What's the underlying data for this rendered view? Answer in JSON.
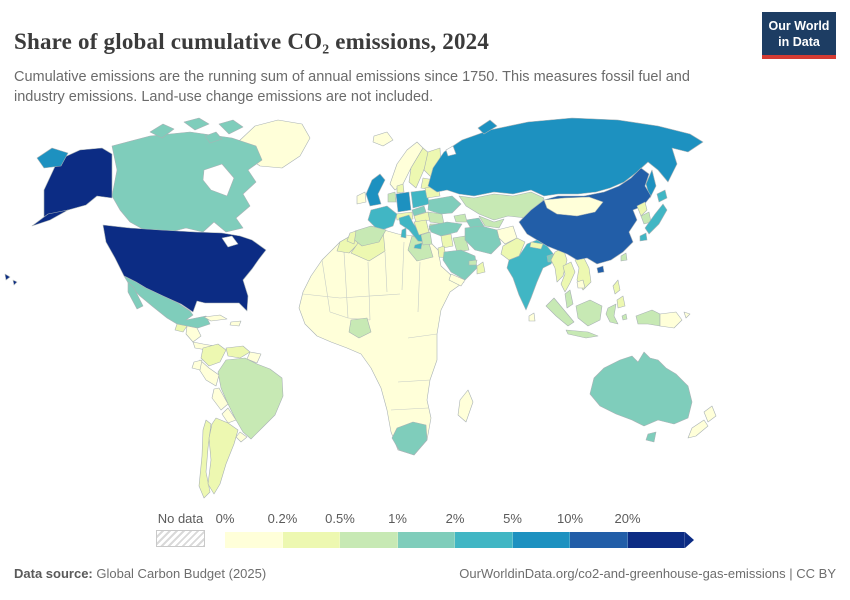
{
  "header": {
    "title": "Share of global cumulative CO₂ emissions, 2024",
    "subtitle": "Cumulative emissions are the running sum of annual emissions since 1750. This measures fossil fuel and industry emissions. Land-use change emissions are not included."
  },
  "logo": {
    "line1": "Our World",
    "line2": "in Data",
    "bg_color": "#1d3d63",
    "accent_color": "#d43b33"
  },
  "legend": {
    "no_data_label": "No data",
    "ticks": [
      "0%",
      "0.2%",
      "0.5%",
      "1%",
      "2%",
      "5%",
      "10%",
      "20%"
    ]
  },
  "footer": {
    "source_label": "Data source:",
    "source_value": " Global Carbon Budget (2025)",
    "credit": "OurWorldinData.org/co2-and-greenhouse-gas-emissions | CC BY"
  },
  "chart_data": {
    "type": "choropleth_map",
    "title": "Share of global cumulative CO₂ emissions, 2024",
    "unit": "% of global cumulative CO₂ emissions",
    "bin_order": [
      "0-0.2%",
      "0.2-0.5%",
      "0.5-1%",
      "1-2%",
      "2-5%",
      "5-10%",
      "10-20%",
      "20%+"
    ],
    "palette": {
      "0-0.2%": "#ffffd9",
      "0.2-0.5%": "#edf8b1",
      "0.5-1%": "#c7e9b4",
      "1-2%": "#7fcdbb",
      "2-5%": "#41b6c4",
      "5-10%": "#1d91c0",
      "10-20%": "#225ea8",
      "20%+": "#0c2c84",
      "No data": "hatched"
    },
    "default_bin": "0-0.2%",
    "countries": {
      "United States": "20%+",
      "China": "10-20%",
      "Russia": "5-10%",
      "Germany": "5-10%",
      "United Kingdom": "5-10%",
      "France": "2-5%",
      "Japan": "2-5%",
      "India": "2-5%",
      "Italy": "2-5%",
      "Poland": "2-5%",
      "Canada": "1-2%",
      "Mexico": "1-2%",
      "Australia": "1-2%",
      "South Africa": "1-2%",
      "Saudi Arabia": "1-2%",
      "Iran": "1-2%",
      "Turkey": "1-2%",
      "Ukraine": "1-2%",
      "Czechia": "1-2%",
      "Turkmenistan": "1-2%",
      "Bangladesh": "1-2%",
      "Spain": "0.5-1%",
      "Kazakhstan": "0.5-1%",
      "Brazil": "0.5-1%",
      "Indonesia": "0.5-1%",
      "Egypt": "0.5-1%",
      "Nigeria": "0.5-1%",
      "South Korea": "0.5-1%",
      "Romania": "0.5-1%",
      "Bulgaria": "0.5-1%",
      "Greece": "0.5-1%",
      "Iraq": "0.5-1%",
      "Uzbekistan": "0.5-1%",
      "Netherlands": "0.5-1%",
      "Malaysia": "0.5-1%",
      "Taiwan": "0.5-1%",
      "Azerbaijan": "0.5-1%",
      "United Arab Emirates": "0.5-1%",
      "Argentina": "0.2-0.5%",
      "Chile": "0.2-0.5%",
      "Colombia": "0.2-0.5%",
      "Venezuela": "0.2-0.5%",
      "Algeria": "0.2-0.5%",
      "Morocco": "0.2-0.5%",
      "Sweden": "0.2-0.5%",
      "Finland": "0.2-0.5%",
      "Denmark": "0.2-0.5%",
      "Belarus": "0.2-0.5%",
      "Lithuania": "0.2-0.5%",
      "Portugal": "0.2-0.5%",
      "Austria": "0.2-0.5%",
      "Hungary": "0.2-0.5%",
      "Serbia": "0.2-0.5%",
      "Syria": "0.2-0.5%",
      "Israel": "0.2-0.5%",
      "Oman": "0.2-0.5%",
      "Pakistan": "0.2-0.5%",
      "Myanmar": "0.2-0.5%",
      "Thailand": "0.2-0.5%",
      "Vietnam": "0.2-0.5%",
      "Philippines": "0.2-0.5%",
      "North Korea": "0.2-0.5%",
      "Nepal": "0.2-0.5%",
      "Guatemala": "0.2-0.5%",
      "Mongolia": "0-0.2%",
      "Greenland": "0-0.2%",
      "Iceland": "0-0.2%",
      "Norway": "0-0.2%",
      "Ireland": "0-0.2%",
      "Cuba": "0-0.2%",
      "Dominican Republic": "0-0.2%",
      "Honduras": "0-0.2%",
      "Panama": "0-0.2%",
      "Peru": "0-0.2%",
      "Ecuador": "0-0.2%",
      "Bolivia": "0-0.2%",
      "Paraguay": "0-0.2%",
      "Uruguay": "0-0.2%",
      "Guyana": "0-0.2%",
      "Madagascar": "0-0.2%",
      "Yemen": "0-0.2%",
      "Afghanistan": "0-0.2%",
      "Sri Lanka": "0-0.2%",
      "Cambodia": "0-0.2%",
      "Papua New Guinea": "0-0.2%",
      "New Zealand": "0-0.2%"
    }
  }
}
